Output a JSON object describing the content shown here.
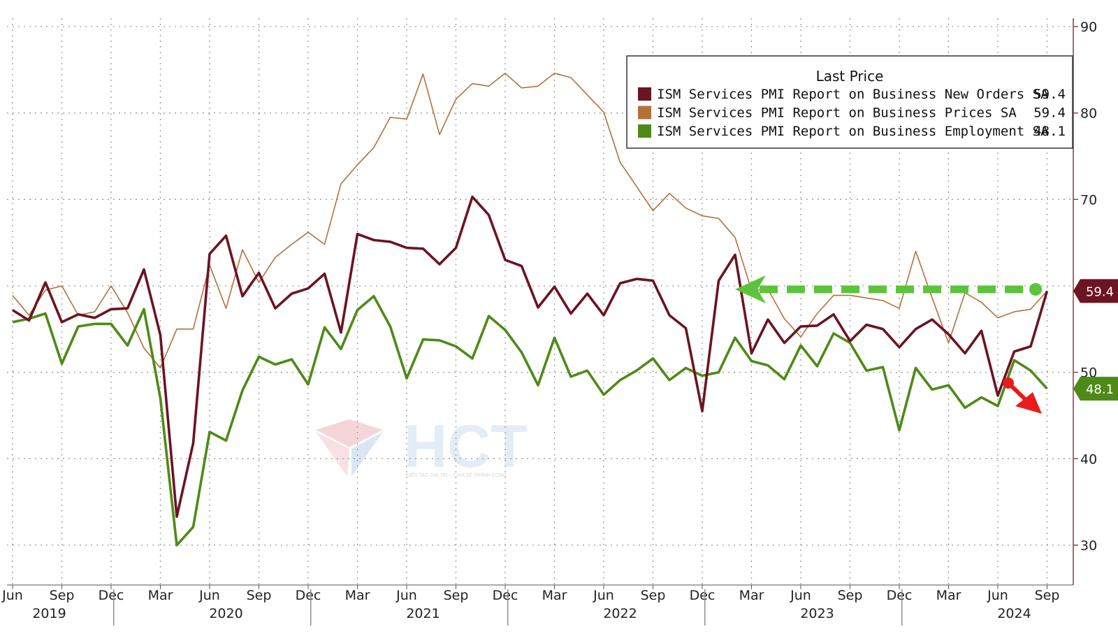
{
  "chart_data": {
    "type": "line",
    "x": [
      "2019-06",
      "2019-07",
      "2019-08",
      "2019-09",
      "2019-10",
      "2019-11",
      "2019-12",
      "2020-01",
      "2020-02",
      "2020-03",
      "2020-04",
      "2020-05",
      "2020-06",
      "2020-07",
      "2020-08",
      "2020-09",
      "2020-10",
      "2020-11",
      "2020-12",
      "2021-01",
      "2021-02",
      "2021-03",
      "2021-04",
      "2021-05",
      "2021-06",
      "2021-07",
      "2021-08",
      "2021-09",
      "2021-10",
      "2021-11",
      "2021-12",
      "2022-01",
      "2022-02",
      "2022-03",
      "2022-04",
      "2022-05",
      "2022-06",
      "2022-07",
      "2022-08",
      "2022-09",
      "2022-10",
      "2022-11",
      "2022-12",
      "2023-01",
      "2023-02",
      "2023-03",
      "2023-04",
      "2023-05",
      "2023-06",
      "2023-07",
      "2023-08",
      "2023-09",
      "2023-10",
      "2023-11",
      "2023-12",
      "2024-01",
      "2024-02",
      "2024-03",
      "2024-04",
      "2024-05",
      "2024-06",
      "2024-07",
      "2024-08",
      "2024-09"
    ],
    "series": [
      {
        "name": "ISM Services PMI Report on Business New Orders SA",
        "color": "#6b1422",
        "last": "59.4",
        "values": [
          57.2,
          56.0,
          60.4,
          55.8,
          56.7,
          56.3,
          57.3,
          57.4,
          61.9,
          54.3,
          33.3,
          41.8,
          63.7,
          65.8,
          58.8,
          61.5,
          57.4,
          59.1,
          59.7,
          61.4,
          54.6,
          66.0,
          65.3,
          65.1,
          64.4,
          64.3,
          62.5,
          64.4,
          70.3,
          68.2,
          63.0,
          62.3,
          57.5,
          59.9,
          56.8,
          59.1,
          56.6,
          60.3,
          60.8,
          60.6,
          56.6,
          55.1,
          45.5,
          60.6,
          63.6,
          52.2,
          56.1,
          53.4,
          55.3,
          55.4,
          56.7,
          53.6,
          55.5,
          55.0,
          52.9,
          55.0,
          56.1,
          54.4,
          52.2,
          54.8,
          47.3,
          52.4,
          53.0,
          59.4
        ]
      },
      {
        "name": "ISM Services PMI Report on Business Prices SA",
        "color": "#b5703a",
        "last": "59.4",
        "values": [
          58.9,
          56.6,
          59.5,
          60.0,
          56.6,
          57.0,
          60.0,
          56.9,
          52.8,
          50.5,
          55.0,
          55.0,
          62.4,
          57.4,
          64.2,
          60.4,
          63.3,
          64.8,
          66.2,
          64.8,
          71.8,
          74.0,
          76.0,
          79.5,
          79.3,
          84.5,
          77.5,
          81.6,
          83.4,
          83.1,
          84.6,
          82.9,
          83.1,
          84.6,
          84.1,
          82.1,
          80.1,
          74.3,
          71.5,
          68.7,
          70.7,
          69.0,
          68.1,
          67.8,
          65.6,
          59.5,
          59.6,
          56.2,
          54.1,
          56.8,
          58.9,
          58.9,
          58.6,
          58.3,
          57.4,
          64.0,
          58.6,
          53.4,
          59.2,
          58.1,
          56.3,
          57.0,
          57.3,
          59.4
        ]
      },
      {
        "name": "ISM Services PMI Report on Business Employment SA",
        "color": "#4e8a18",
        "last": "48.1",
        "values": [
          55.8,
          56.2,
          56.8,
          51.0,
          55.3,
          55.6,
          55.6,
          53.1,
          57.3,
          47.0,
          30.0,
          32.1,
          43.1,
          42.1,
          47.9,
          51.8,
          50.9,
          51.5,
          48.6,
          55.2,
          52.7,
          57.2,
          58.8,
          55.3,
          49.3,
          53.8,
          53.7,
          53.0,
          51.6,
          56.5,
          54.9,
          52.3,
          48.5,
          54.0,
          49.5,
          50.2,
          47.4,
          49.1,
          50.2,
          51.6,
          49.1,
          50.5,
          49.6,
          50.0,
          54.0,
          51.3,
          50.8,
          49.2,
          53.1,
          50.7,
          54.5,
          53.4,
          50.2,
          50.6,
          43.3,
          50.5,
          48.0,
          48.5,
          45.9,
          47.1,
          46.1,
          51.4,
          50.2,
          48.1
        ]
      }
    ],
    "legend": {
      "title": "Last Price",
      "position": "top-right"
    },
    "x_tick_labels": [
      "Jun",
      "Sep",
      "Dec",
      "Mar",
      "Jun",
      "Sep",
      "Dec",
      "Mar",
      "Jun",
      "Sep",
      "Dec",
      "Mar",
      "Jun",
      "Sep",
      "Dec",
      "Mar",
      "Jun",
      "Sep",
      "Dec",
      "Mar",
      "Jun",
      "Sep"
    ],
    "year_labels": [
      "2019",
      "2020",
      "2021",
      "2022",
      "2023",
      "2024"
    ],
    "y_ticks": [
      "30",
      "40",
      "50",
      "70",
      "80",
      "90"
    ],
    "ylim": [
      25,
      90
    ],
    "y_axis_side": "right",
    "grid": true,
    "annotations": [
      {
        "type": "dashed-arrow",
        "color": "#5cc43c",
        "note": "level of latest New Orders reading"
      },
      {
        "type": "arrow",
        "color": "#e81c1c",
        "direction": "down"
      }
    ]
  },
  "watermark": {
    "brand": "HCT",
    "tagline": "KIẾN TẠO GIÁ TRỊ – CHIA SẺ THÀNH CÔNG"
  }
}
